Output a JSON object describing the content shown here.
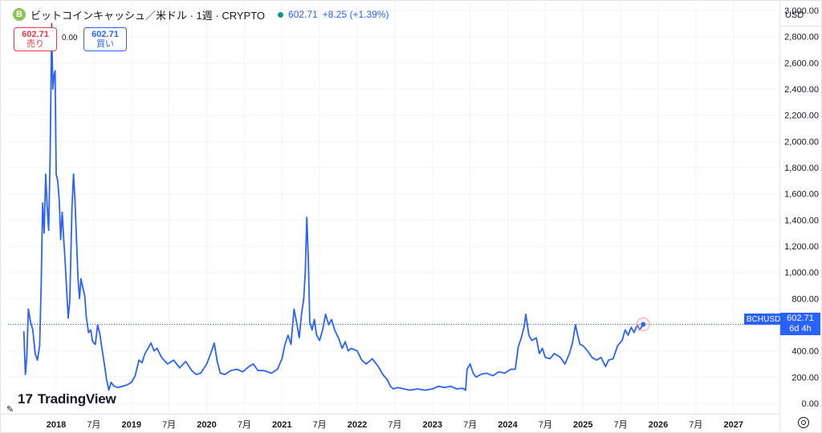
{
  "header": {
    "coin_icon": "bitcoin-cash-icon",
    "coin_icon_glyph": "B",
    "title": "ビットコインキャッシュ／米ドル · 1週 · CRYPTO",
    "price": "602.71",
    "change": "+8.25 (+1.39%)"
  },
  "trade": {
    "sell_price": "602.71",
    "sell_label": "売り",
    "spread": "0.00",
    "buy_price": "602.71",
    "buy_label": "買い"
  },
  "currency": "USD",
  "price_tag": {
    "symbol": "BCHUSD",
    "value": "602.71",
    "countdown": "6d 4h"
  },
  "logo": {
    "mark": "17",
    "text": "TradingView"
  },
  "colors": {
    "line": "#2962ff",
    "sell": "#f23645",
    "buy": "#2962ff",
    "grid": "#f0f3fa"
  },
  "chart_data": {
    "type": "line",
    "ylim": [
      -80,
      3080
    ],
    "xlim": [
      2017.36,
      2027.6
    ],
    "y_ticks": [
      "0.00",
      "200.00",
      "400.00",
      "600.00",
      "800.00",
      "1,000.00",
      "1,200.00",
      "1,400.00",
      "1,600.00",
      "1,800.00",
      "2,000.00",
      "2,200.00",
      "2,400.00",
      "2,600.00",
      "2,800.00",
      "3,000.00"
    ],
    "y_tick_values": [
      0,
      200,
      400,
      600,
      800,
      1000,
      1200,
      1400,
      1600,
      1800,
      2000,
      2200,
      2400,
      2600,
      2800,
      3000
    ],
    "x_ticks": [
      {
        "label": "2018",
        "x": 2018.0,
        "bold": true
      },
      {
        "label": "7月",
        "x": 2018.5,
        "bold": false
      },
      {
        "label": "2019",
        "x": 2019.0,
        "bold": true
      },
      {
        "label": "7月",
        "x": 2019.5,
        "bold": false
      },
      {
        "label": "2020",
        "x": 2020.0,
        "bold": true
      },
      {
        "label": "7月",
        "x": 2020.5,
        "bold": false
      },
      {
        "label": "2021",
        "x": 2021.0,
        "bold": true
      },
      {
        "label": "7月",
        "x": 2021.5,
        "bold": false
      },
      {
        "label": "2022",
        "x": 2022.0,
        "bold": true
      },
      {
        "label": "7月",
        "x": 2022.5,
        "bold": false
      },
      {
        "label": "2023",
        "x": 2023.0,
        "bold": true
      },
      {
        "label": "7月",
        "x": 2023.5,
        "bold": false
      },
      {
        "label": "2024",
        "x": 2024.0,
        "bold": true
      },
      {
        "label": "7月",
        "x": 2024.5,
        "bold": false
      },
      {
        "label": "2025",
        "x": 2025.0,
        "bold": true
      },
      {
        "label": "7月",
        "x": 2025.5,
        "bold": false
      },
      {
        "label": "2026",
        "x": 2026.0,
        "bold": true
      },
      {
        "label": "7月",
        "x": 2026.5,
        "bold": false
      },
      {
        "label": "2027",
        "x": 2027.0,
        "bold": true
      }
    ],
    "series": [
      {
        "name": "",
        "points": [
          [
            2017.57,
            550
          ],
          [
            2017.59,
            220
          ],
          [
            2017.61,
            350
          ],
          [
            2017.63,
            720
          ],
          [
            2017.66,
            620
          ],
          [
            2017.69,
            560
          ],
          [
            2017.72,
            380
          ],
          [
            2017.75,
            330
          ],
          [
            2017.78,
            440
          ],
          [
            2017.8,
            900
          ],
          [
            2017.82,
            1530
          ],
          [
            2017.84,
            1300
          ],
          [
            2017.86,
            1750
          ],
          [
            2017.88,
            1500
          ],
          [
            2017.9,
            1320
          ],
          [
            2017.92,
            1900
          ],
          [
            2017.94,
            2900
          ],
          [
            2017.955,
            2400
          ],
          [
            2017.97,
            2500
          ],
          [
            2017.985,
            2540
          ],
          [
            2018.0,
            1750
          ],
          [
            2018.02,
            1700
          ],
          [
            2018.04,
            1550
          ],
          [
            2018.06,
            1250
          ],
          [
            2018.08,
            1460
          ],
          [
            2018.1,
            1250
          ],
          [
            2018.12,
            1080
          ],
          [
            2018.14,
            860
          ],
          [
            2018.16,
            650
          ],
          [
            2018.18,
            780
          ],
          [
            2018.21,
            1500
          ],
          [
            2018.23,
            1750
          ],
          [
            2018.25,
            1550
          ],
          [
            2018.27,
            1250
          ],
          [
            2018.29,
            950
          ],
          [
            2018.31,
            800
          ],
          [
            2018.33,
            950
          ],
          [
            2018.36,
            870
          ],
          [
            2018.38,
            820
          ],
          [
            2018.4,
            660
          ],
          [
            2018.43,
            540
          ],
          [
            2018.46,
            560
          ],
          [
            2018.48,
            480
          ],
          [
            2018.5,
            460
          ],
          [
            2018.52,
            450
          ],
          [
            2018.55,
            600
          ],
          [
            2018.58,
            530
          ],
          [
            2018.61,
            410
          ],
          [
            2018.64,
            300
          ],
          [
            2018.67,
            180
          ],
          [
            2018.7,
            100
          ],
          [
            2018.73,
            160
          ],
          [
            2018.77,
            130
          ],
          [
            2018.82,
            120
          ],
          [
            2018.88,
            130
          ],
          [
            2018.94,
            140
          ],
          [
            2019.0,
            160
          ],
          [
            2019.05,
            210
          ],
          [
            2019.1,
            330
          ],
          [
            2019.14,
            310
          ],
          [
            2019.18,
            380
          ],
          [
            2019.22,
            420
          ],
          [
            2019.26,
            460
          ],
          [
            2019.3,
            400
          ],
          [
            2019.34,
            420
          ],
          [
            2019.4,
            350
          ],
          [
            2019.48,
            300
          ],
          [
            2019.56,
            330
          ],
          [
            2019.64,
            270
          ],
          [
            2019.72,
            320
          ],
          [
            2019.8,
            250
          ],
          [
            2019.86,
            220
          ],
          [
            2019.92,
            230
          ],
          [
            2020.0,
            300
          ],
          [
            2020.06,
            390
          ],
          [
            2020.1,
            460
          ],
          [
            2020.14,
            320
          ],
          [
            2020.18,
            230
          ],
          [
            2020.24,
            220
          ],
          [
            2020.32,
            250
          ],
          [
            2020.4,
            260
          ],
          [
            2020.48,
            240
          ],
          [
            2020.56,
            280
          ],
          [
            2020.62,
            300
          ],
          [
            2020.68,
            250
          ],
          [
            2020.76,
            250
          ],
          [
            2020.86,
            230
          ],
          [
            2020.94,
            260
          ],
          [
            2021.0,
            340
          ],
          [
            2021.04,
            450
          ],
          [
            2021.08,
            520
          ],
          [
            2021.12,
            450
          ],
          [
            2021.16,
            720
          ],
          [
            2021.2,
            600
          ],
          [
            2021.23,
            500
          ],
          [
            2021.26,
            680
          ],
          [
            2021.29,
            800
          ],
          [
            2021.31,
            1000
          ],
          [
            2021.33,
            1420
          ],
          [
            2021.35,
            1100
          ],
          [
            2021.37,
            620
          ],
          [
            2021.4,
            560
          ],
          [
            2021.43,
            640
          ],
          [
            2021.46,
            520
          ],
          [
            2021.5,
            480
          ],
          [
            2021.54,
            560
          ],
          [
            2021.58,
            680
          ],
          [
            2021.62,
            600
          ],
          [
            2021.66,
            640
          ],
          [
            2021.7,
            560
          ],
          [
            2021.75,
            500
          ],
          [
            2021.8,
            420
          ],
          [
            2021.84,
            470
          ],
          [
            2021.88,
            400
          ],
          [
            2021.92,
            420
          ],
          [
            2022.0,
            400
          ],
          [
            2022.06,
            330
          ],
          [
            2022.12,
            300
          ],
          [
            2022.2,
            340
          ],
          [
            2022.28,
            280
          ],
          [
            2022.34,
            220
          ],
          [
            2022.4,
            180
          ],
          [
            2022.44,
            130
          ],
          [
            2022.48,
            110
          ],
          [
            2022.54,
            120
          ],
          [
            2022.62,
            110
          ],
          [
            2022.7,
            100
          ],
          [
            2022.8,
            110
          ],
          [
            2022.9,
            100
          ],
          [
            2023.0,
            110
          ],
          [
            2023.08,
            130
          ],
          [
            2023.16,
            120
          ],
          [
            2023.24,
            130
          ],
          [
            2023.32,
            110
          ],
          [
            2023.4,
            115
          ],
          [
            2023.44,
            100
          ],
          [
            2023.46,
            260
          ],
          [
            2023.5,
            300
          ],
          [
            2023.54,
            230
          ],
          [
            2023.58,
            200
          ],
          [
            2023.64,
            220
          ],
          [
            2023.72,
            230
          ],
          [
            2023.8,
            210
          ],
          [
            2023.88,
            240
          ],
          [
            2023.96,
            230
          ],
          [
            2024.04,
            260
          ],
          [
            2024.1,
            260
          ],
          [
            2024.14,
            430
          ],
          [
            2024.18,
            500
          ],
          [
            2024.22,
            590
          ],
          [
            2024.24,
            680
          ],
          [
            2024.28,
            520
          ],
          [
            2024.32,
            480
          ],
          [
            2024.38,
            500
          ],
          [
            2024.42,
            380
          ],
          [
            2024.46,
            420
          ],
          [
            2024.5,
            350
          ],
          [
            2024.56,
            340
          ],
          [
            2024.62,
            380
          ],
          [
            2024.7,
            350
          ],
          [
            2024.76,
            300
          ],
          [
            2024.82,
            380
          ],
          [
            2024.86,
            460
          ],
          [
            2024.9,
            600
          ],
          [
            2024.93,
            520
          ],
          [
            2024.96,
            450
          ],
          [
            2025.0,
            440
          ],
          [
            2025.06,
            400
          ],
          [
            2025.12,
            350
          ],
          [
            2025.18,
            330
          ],
          [
            2025.24,
            350
          ],
          [
            2025.3,
            280
          ],
          [
            2025.34,
            330
          ],
          [
            2025.4,
            340
          ],
          [
            2025.46,
            440
          ],
          [
            2025.52,
            480
          ],
          [
            2025.56,
            560
          ],
          [
            2025.6,
            520
          ],
          [
            2025.64,
            580
          ],
          [
            2025.68,
            540
          ],
          [
            2025.72,
            600
          ],
          [
            2025.75,
            560
          ],
          [
            2025.8,
            602.71
          ]
        ]
      }
    ]
  }
}
